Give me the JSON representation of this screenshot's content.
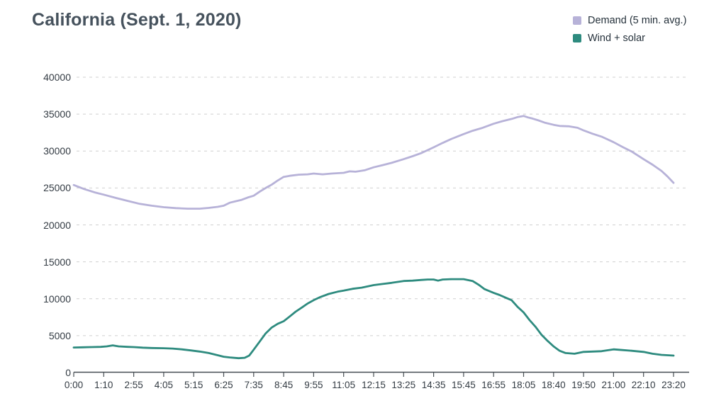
{
  "chart_data": {
    "type": "line",
    "title": "California (Sept. 1, 2020)",
    "legend_position": "top-right",
    "grid": "horizontal-dashed",
    "x_axis": {
      "type": "time-categorical",
      "tick_labels": [
        "0:00",
        "1:10",
        "2:55",
        "4:05",
        "5:15",
        "6:25",
        "7:35",
        "8:45",
        "9:55",
        "11:05",
        "12:15",
        "13:25",
        "14:35",
        "15:45",
        "16:55",
        "18:05",
        "18:40",
        "19:50",
        "21:00",
        "22:10",
        "23:20"
      ]
    },
    "y_axis": {
      "ticks": [
        0,
        5000,
        10000,
        15000,
        20000,
        25000,
        30000,
        35000,
        40000
      ],
      "range": [
        0,
        40000
      ]
    },
    "point_x_unit": "x-axis tick index (0 = 0:00 ... 20 = 23:20)",
    "series": [
      {
        "name": "Demand (5 min. avg.)",
        "color": "#b7b2d8",
        "points": [
          [
            0,
            25400
          ],
          [
            0.35,
            24850
          ],
          [
            0.7,
            24400
          ],
          [
            1,
            24100
          ],
          [
            1.4,
            23650
          ],
          [
            1.8,
            23250
          ],
          [
            2.2,
            22850
          ],
          [
            2.6,
            22600
          ],
          [
            3,
            22400
          ],
          [
            3.4,
            22270
          ],
          [
            3.8,
            22200
          ],
          [
            4.2,
            22200
          ],
          [
            4.5,
            22300
          ],
          [
            4.8,
            22450
          ],
          [
            5,
            22600
          ],
          [
            5.2,
            23000
          ],
          [
            5.4,
            23200
          ],
          [
            5.6,
            23400
          ],
          [
            5.8,
            23700
          ],
          [
            6,
            23950
          ],
          [
            6.2,
            24500
          ],
          [
            6.4,
            25000
          ],
          [
            6.6,
            25450
          ],
          [
            6.8,
            26000
          ],
          [
            7,
            26500
          ],
          [
            7.2,
            26650
          ],
          [
            7.5,
            26800
          ],
          [
            7.8,
            26850
          ],
          [
            8,
            26950
          ],
          [
            8.3,
            26850
          ],
          [
            8.6,
            26950
          ],
          [
            9,
            27050
          ],
          [
            9.2,
            27250
          ],
          [
            9.4,
            27200
          ],
          [
            9.7,
            27400
          ],
          [
            10,
            27800
          ],
          [
            10.3,
            28100
          ],
          [
            10.6,
            28400
          ],
          [
            11,
            28900
          ],
          [
            11.3,
            29300
          ],
          [
            11.6,
            29750
          ],
          [
            12,
            30500
          ],
          [
            12.3,
            31100
          ],
          [
            12.6,
            31650
          ],
          [
            13,
            32300
          ],
          [
            13.3,
            32750
          ],
          [
            13.6,
            33100
          ],
          [
            14,
            33700
          ],
          [
            14.3,
            34050
          ],
          [
            14.6,
            34350
          ],
          [
            14.8,
            34600
          ],
          [
            15,
            34750
          ],
          [
            15.15,
            34550
          ],
          [
            15.3,
            34400
          ],
          [
            15.5,
            34150
          ],
          [
            15.7,
            33850
          ],
          [
            16,
            33550
          ],
          [
            16.2,
            33400
          ],
          [
            16.5,
            33350
          ],
          [
            16.8,
            33150
          ],
          [
            17,
            32800
          ],
          [
            17.3,
            32350
          ],
          [
            17.6,
            31950
          ],
          [
            18,
            31200
          ],
          [
            18.3,
            30550
          ],
          [
            18.6,
            29950
          ],
          [
            19,
            28900
          ],
          [
            19.3,
            28150
          ],
          [
            19.6,
            27300
          ],
          [
            19.8,
            26550
          ],
          [
            20,
            25700
          ]
        ]
      },
      {
        "name": "Wind + solar",
        "color": "#2e8b7f",
        "points": [
          [
            0,
            3400
          ],
          [
            0.3,
            3420
          ],
          [
            0.6,
            3450
          ],
          [
            0.9,
            3480
          ],
          [
            1.1,
            3550
          ],
          [
            1.3,
            3680
          ],
          [
            1.5,
            3550
          ],
          [
            1.8,
            3480
          ],
          [
            2,
            3450
          ],
          [
            2.3,
            3380
          ],
          [
            2.6,
            3330
          ],
          [
            3,
            3300
          ],
          [
            3.3,
            3250
          ],
          [
            3.6,
            3150
          ],
          [
            3.9,
            3000
          ],
          [
            4.2,
            2850
          ],
          [
            4.5,
            2650
          ],
          [
            4.8,
            2350
          ],
          [
            5,
            2150
          ],
          [
            5.2,
            2050
          ],
          [
            5.5,
            1950
          ],
          [
            5.7,
            2000
          ],
          [
            5.85,
            2300
          ],
          [
            6,
            3100
          ],
          [
            6.2,
            4200
          ],
          [
            6.4,
            5300
          ],
          [
            6.6,
            6100
          ],
          [
            6.8,
            6600
          ],
          [
            7,
            6950
          ],
          [
            7.2,
            7600
          ],
          [
            7.4,
            8250
          ],
          [
            7.6,
            8800
          ],
          [
            7.8,
            9350
          ],
          [
            8,
            9800
          ],
          [
            8.2,
            10200
          ],
          [
            8.5,
            10650
          ],
          [
            8.8,
            10950
          ],
          [
            9,
            11100
          ],
          [
            9.3,
            11350
          ],
          [
            9.6,
            11500
          ],
          [
            10,
            11850
          ],
          [
            10.3,
            12000
          ],
          [
            10.6,
            12150
          ],
          [
            11,
            12400
          ],
          [
            11.3,
            12450
          ],
          [
            11.6,
            12550
          ],
          [
            11.8,
            12600
          ],
          [
            12,
            12600
          ],
          [
            12.15,
            12450
          ],
          [
            12.3,
            12600
          ],
          [
            12.6,
            12650
          ],
          [
            13,
            12650
          ],
          [
            13.3,
            12400
          ],
          [
            13.5,
            11900
          ],
          [
            13.7,
            11300
          ],
          [
            14,
            10800
          ],
          [
            14.2,
            10500
          ],
          [
            14.4,
            10150
          ],
          [
            14.6,
            9800
          ],
          [
            14.8,
            8900
          ],
          [
            15,
            8150
          ],
          [
            15.2,
            7100
          ],
          [
            15.4,
            6200
          ],
          [
            15.6,
            5100
          ],
          [
            15.8,
            4300
          ],
          [
            16,
            3550
          ],
          [
            16.2,
            2950
          ],
          [
            16.4,
            2650
          ],
          [
            16.7,
            2550
          ],
          [
            17,
            2800
          ],
          [
            17.3,
            2850
          ],
          [
            17.6,
            2900
          ],
          [
            18,
            3150
          ],
          [
            18.3,
            3050
          ],
          [
            18.6,
            2950
          ],
          [
            19,
            2800
          ],
          [
            19.3,
            2550
          ],
          [
            19.6,
            2400
          ],
          [
            20,
            2300
          ]
        ]
      }
    ],
    "colors": {
      "title": "#46525d",
      "tick_labels": "#333b43",
      "gridline": "#cfcfcf",
      "axis": "#474e54",
      "background": "#ffffff"
    }
  }
}
